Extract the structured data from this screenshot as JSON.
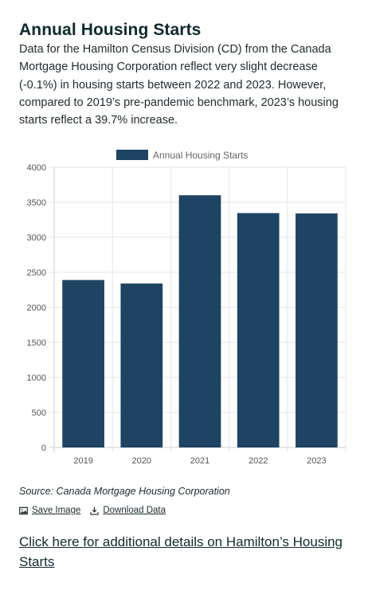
{
  "page": {
    "title": "Annual Housing Starts",
    "intro": "Data for the Hamilton Census Division (CD) from the Canada Mortgage Housing Corporation reflect very slight decrease (-0.1%) in housing starts between 2022 and 2023. However, compared to 2019’s pre-pandemic benchmark, 2023’s housing starts reflect a 39.7% increase.",
    "source": "Source: Canada Mortgage Housing Corporation",
    "save_image_label": "Save Image",
    "download_data_label": "Download Data",
    "details_link": "Click here for additional details on Hamilton’s Housing Starts"
  },
  "icons": {
    "save": "image-icon",
    "download": "download-icon"
  },
  "colors": {
    "bar": "#1f4463",
    "grid": "#e6e6e6",
    "axis": "#cccccc"
  },
  "chart_data": {
    "type": "bar",
    "categories": [
      "2019",
      "2020",
      "2021",
      "2022",
      "2023"
    ],
    "series": [
      {
        "name": "Annual Housing Starts",
        "values": [
          2390,
          2340,
          3600,
          3345,
          3340
        ]
      }
    ],
    "ylim": [
      0,
      4000
    ],
    "yticks": [
      0,
      500,
      1000,
      1500,
      2000,
      2500,
      3000,
      3500,
      4000
    ],
    "grid": true,
    "legend": "top-center",
    "xlabel": "",
    "ylabel": ""
  }
}
